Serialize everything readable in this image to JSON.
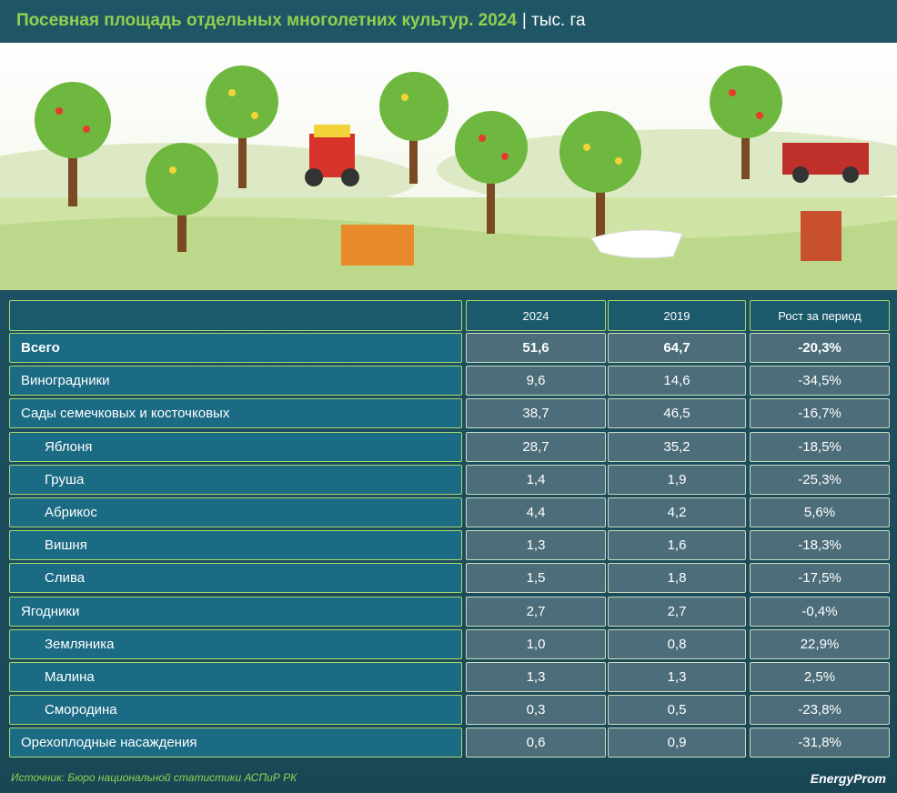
{
  "header": {
    "title": "Посевная площадь отдельных многолетних культур. 2024",
    "unit": "| тыс. га"
  },
  "table": {
    "columns": [
      "2024",
      "2019",
      "Рост за период"
    ],
    "rows": [
      {
        "cells": [
          "Всего",
          "51,6",
          "64,7",
          "-20,3%"
        ]
      },
      {
        "cells": [
          "Виноградники",
          "9,6",
          "14,6",
          "-34,5%"
        ]
      },
      {
        "cells": [
          "Сады семечковых и косточковых",
          "38,7",
          "46,5",
          "-16,7%"
        ],
        "children": [
          {
            "cells": [
              "Яблоня",
              "28,7",
              "35,2",
              "-18,5%"
            ]
          },
          {
            "cells": [
              "Груша",
              "1,4",
              "1,9",
              "-25,3%"
            ]
          },
          {
            "cells": [
              "Абрикос",
              "4,4",
              "4,2",
              "5,6%"
            ]
          },
          {
            "cells": [
              "Вишня",
              "1,3",
              "1,6",
              "-18,3%"
            ]
          },
          {
            "cells": [
              "Слива",
              "1,5",
              "1,8",
              "-17,5%"
            ]
          }
        ]
      },
      {
        "cells": [
          "Ягодники",
          "2,7",
          "2,7",
          "-0,4%"
        ],
        "children": [
          {
            "cells": [
              "Земляника",
              "1,0",
              "0,8",
              "22,9%"
            ]
          },
          {
            "cells": [
              "Малина",
              "1,3",
              "1,3",
              "2,5%"
            ]
          },
          {
            "cells": [
              "Смородина",
              "0,3",
              "0,5",
              "-23,8%"
            ]
          }
        ]
      },
      {
        "cells": [
          "Орехоплодные насаждения",
          "0,6",
          "0,9",
          "-31,8%"
        ]
      }
    ]
  },
  "footer": {
    "source": "Источник: Бюро национальной статистики АСПиР РК",
    "logo": "EnergyProm"
  }
}
